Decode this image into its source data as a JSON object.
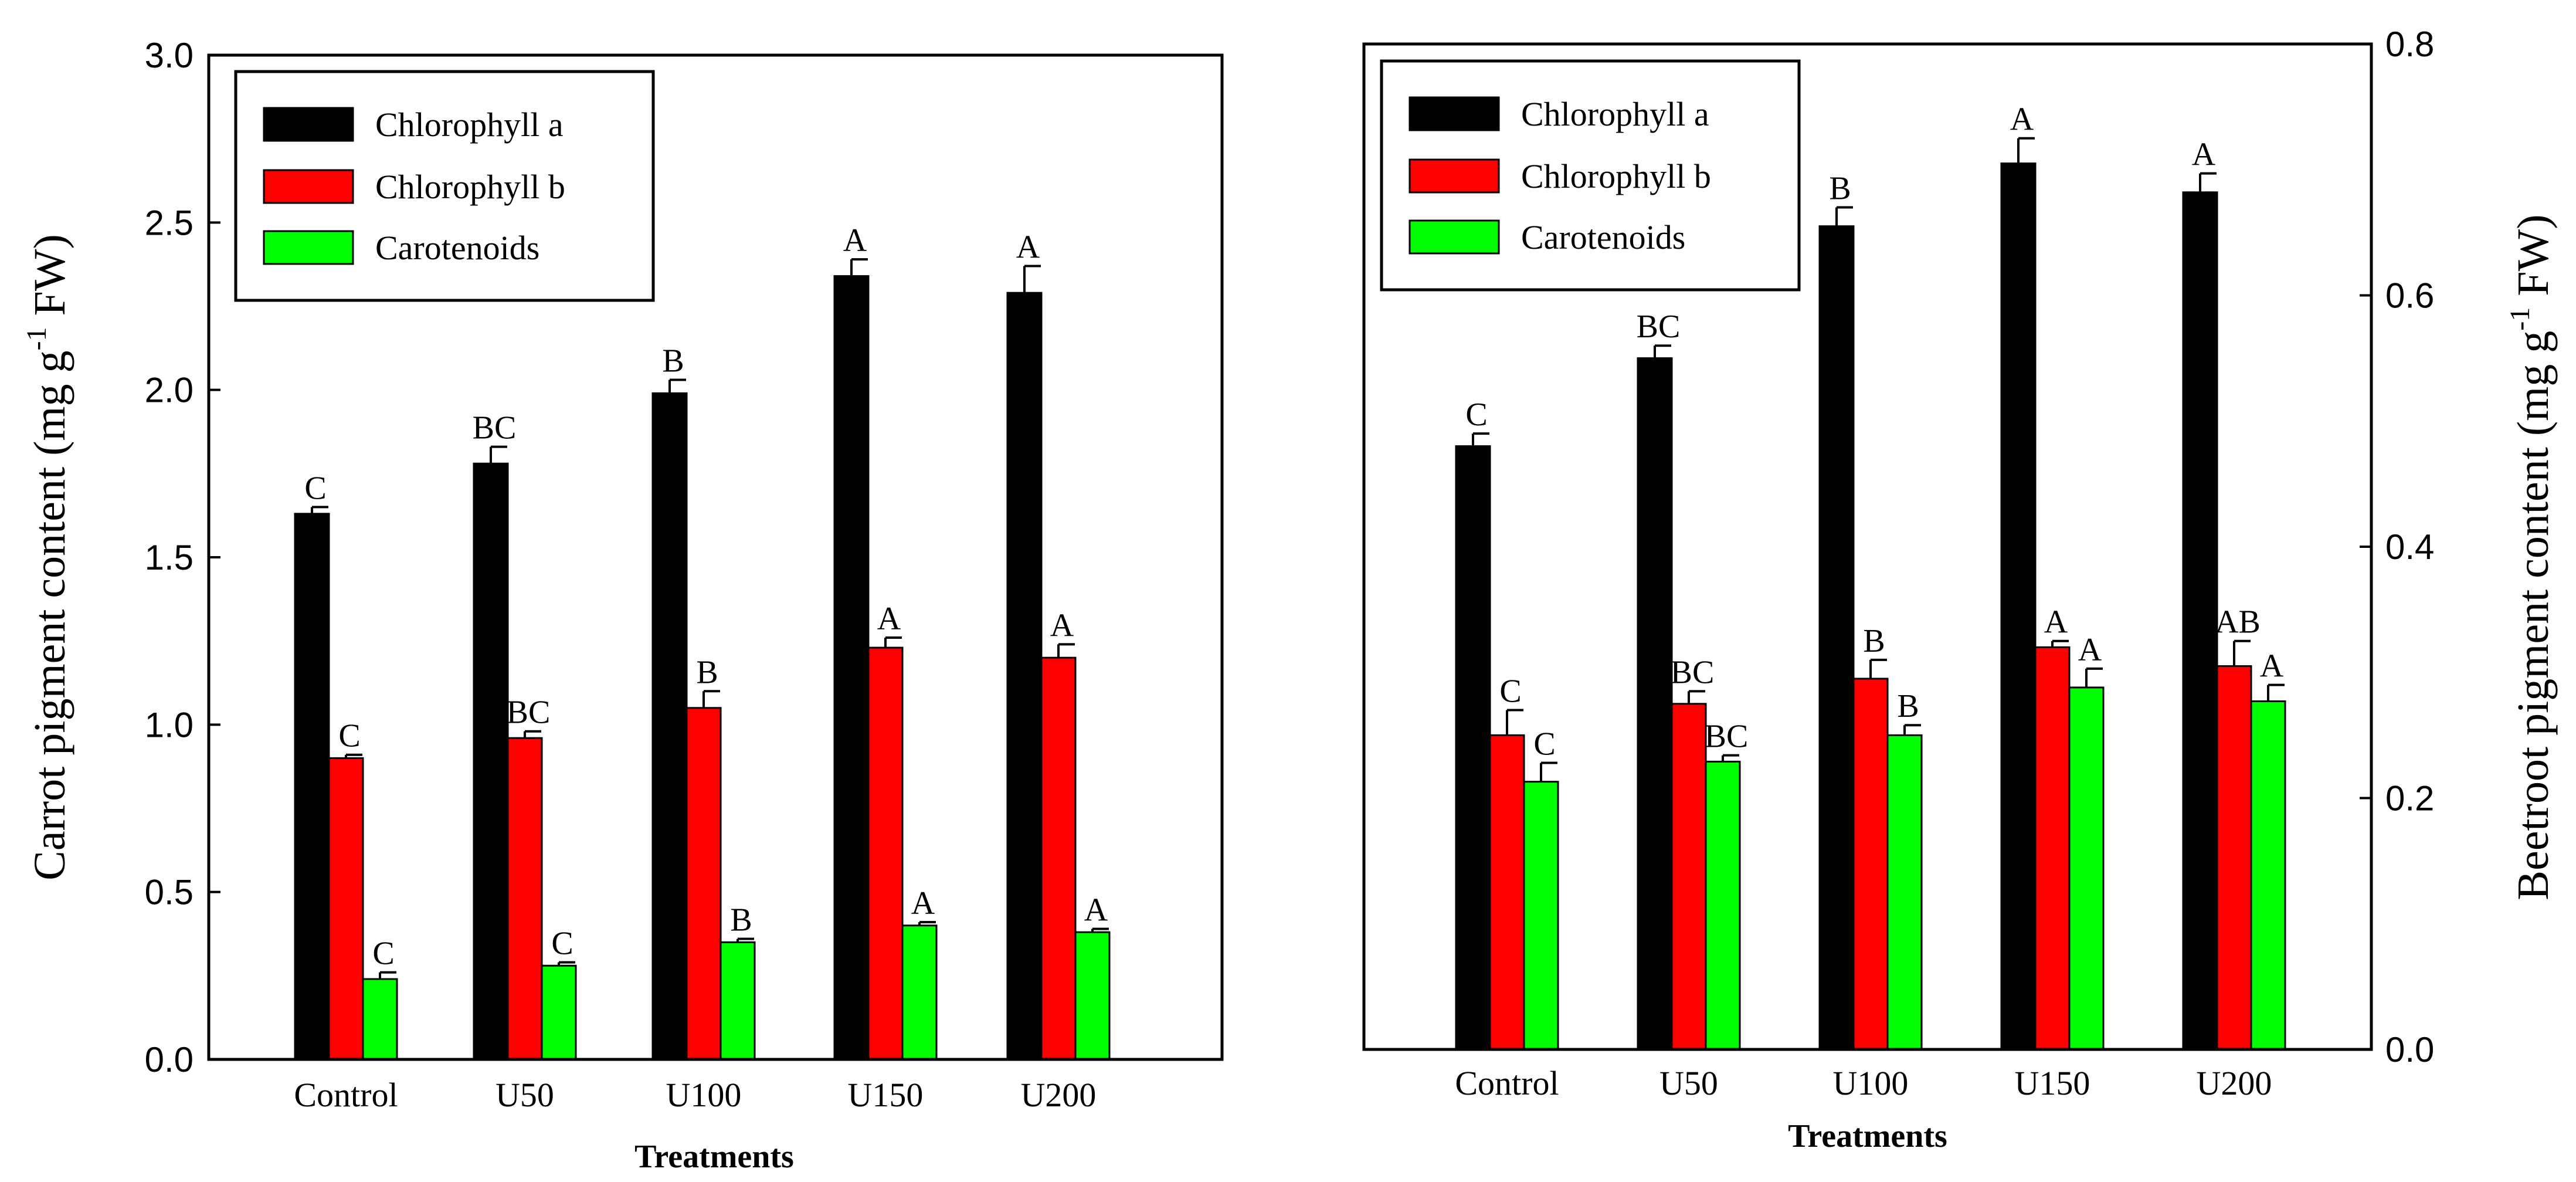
{
  "chart_data": [
    {
      "type": "bar",
      "id": "carrot",
      "ylabel": "Carrot pigment content (mg g-1 FW)",
      "ylabel_parts": {
        "prefix": "Carrot pigment content (mg g",
        "sup": "-1",
        "suffix": " FW)"
      },
      "xlabel": "Treatments",
      "ylim": [
        0,
        3.0
      ],
      "ytick_values": [
        0,
        0.5,
        1.0,
        1.5,
        2.0,
        2.5,
        3.0
      ],
      "ytick_labels": [
        "0.0",
        "0.5",
        "1.0",
        "1.5",
        "2.0",
        "2.5",
        "3.0"
      ],
      "y_axis_side": "left",
      "legend_position": "top-left",
      "categories": [
        "Control",
        "U50",
        "U100",
        "U150",
        "U200"
      ],
      "series": [
        {
          "name": "Chlorophyll a",
          "color": "#000000",
          "values": [
            1.63,
            1.78,
            1.99,
            2.34,
            2.29
          ],
          "errors": [
            0.02,
            0.05,
            0.04,
            0.05,
            0.08
          ],
          "letters": [
            "C",
            "BC",
            "B",
            "A",
            "A"
          ]
        },
        {
          "name": "Chlorophyll b",
          "color": "#ff0000",
          "values": [
            0.9,
            0.96,
            1.05,
            1.23,
            1.2
          ],
          "errors": [
            0.01,
            0.02,
            0.05,
            0.03,
            0.04
          ],
          "letters": [
            "C",
            "BC",
            "B",
            "A",
            "A"
          ]
        },
        {
          "name": "Carotenoids",
          "color": "#00ff00",
          "values": [
            0.24,
            0.28,
            0.35,
            0.4,
            0.38
          ],
          "errors": [
            0.02,
            0.01,
            0.01,
            0.01,
            0.01
          ],
          "letters": [
            "C",
            "C",
            "B",
            "A",
            "A"
          ]
        }
      ]
    },
    {
      "type": "bar",
      "id": "beetroot",
      "ylabel": "Beetroot pigment content (mg g-1 FW)",
      "ylabel_parts": {
        "prefix": "Beetroot pigment content (mg g",
        "sup": "-1",
        "suffix": " FW)"
      },
      "xlabel": "Treatments",
      "ylim": [
        0,
        0.8
      ],
      "ytick_values": [
        0,
        0.2,
        0.4,
        0.6,
        0.8
      ],
      "ytick_labels": [
        "0.0",
        "0.2",
        "0.4",
        "0.6",
        "0.8"
      ],
      "y_axis_side": "right",
      "legend_position": "top-left",
      "categories": [
        "Control",
        "U50",
        "U100",
        "U150",
        "U200"
      ],
      "series": [
        {
          "name": "Chlorophyll a",
          "color": "#000000",
          "values": [
            0.48,
            0.55,
            0.655,
            0.705,
            0.682
          ],
          "errors": [
            0.01,
            0.01,
            0.015,
            0.02,
            0.015
          ],
          "letters": [
            "C",
            "BC",
            "B",
            "A",
            "A"
          ]
        },
        {
          "name": "Chlorophyll b",
          "color": "#ff0000",
          "values": [
            0.25,
            0.275,
            0.295,
            0.32,
            0.305
          ],
          "errors": [
            0.02,
            0.01,
            0.015,
            0.005,
            0.02
          ],
          "letters": [
            "C",
            "BC",
            "B",
            "A",
            "AB"
          ]
        },
        {
          "name": "Carotenoids",
          "color": "#00ff00",
          "values": [
            0.213,
            0.229,
            0.25,
            0.288,
            0.277
          ],
          "errors": [
            0.015,
            0.005,
            0.008,
            0.015,
            0.013
          ],
          "letters": [
            "C",
            "BC",
            "B",
            "A",
            "A"
          ]
        }
      ]
    }
  ]
}
